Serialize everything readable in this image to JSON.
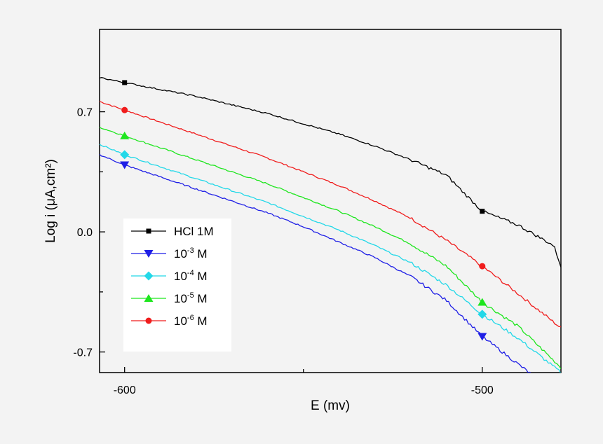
{
  "chart_data": {
    "type": "line",
    "xlabel": "E (mv)",
    "ylabel": "Log i (μA,cm²)",
    "xlim": [
      -607,
      -478
    ],
    "ylim": [
      -0.82,
      1.18
    ],
    "xticks": [
      -600,
      -500
    ],
    "yticks": [
      -0.7,
      0.0,
      0.7
    ],
    "xtick_labels": [
      "-600",
      "-500"
    ],
    "ytick_labels": [
      "-0.7",
      "0.0",
      "0.7"
    ],
    "grid": false,
    "legend_position": "bottom-left",
    "series": [
      {
        "name": "HCl 1M",
        "legend_base": "HCl 1M",
        "legend_sup": "",
        "legend_suffix": "",
        "color": "#000000",
        "marker": "square",
        "marker_x": [
          -600,
          -500
        ],
        "x": [
          -607,
          -600,
          -590,
          -580,
          -570,
          -560,
          -550,
          -540,
          -530,
          -520,
          -510,
          -500,
          -490,
          -480,
          -478
        ],
        "y": [
          0.9,
          0.87,
          0.83,
          0.79,
          0.74,
          0.69,
          0.63,
          0.57,
          0.5,
          0.42,
          0.33,
          0.12,
          0.04,
          -0.08,
          -0.2
        ]
      },
      {
        "name": "10-3 M",
        "legend_base": "10",
        "legend_sup": "-3",
        "legend_suffix": " M",
        "color": "#1f1fe6",
        "marker": "triangle-down",
        "marker_x": [
          -600,
          -500
        ],
        "x": [
          -607,
          -600,
          -590,
          -580,
          -570,
          -560,
          -550,
          -540,
          -530,
          -520,
          -510,
          -500,
          -490,
          -485
        ],
        "y": [
          0.45,
          0.39,
          0.32,
          0.25,
          0.18,
          0.11,
          0.03,
          -0.06,
          -0.15,
          -0.26,
          -0.4,
          -0.61,
          -0.77,
          -0.85
        ]
      },
      {
        "name": "10-4 M",
        "legend_base": "10",
        "legend_sup": "-4",
        "legend_suffix": " M",
        "color": "#22d8e8",
        "marker": "diamond",
        "marker_x": [
          -600,
          -500
        ],
        "x": [
          -607,
          -600,
          -590,
          -580,
          -570,
          -560,
          -550,
          -540,
          -530,
          -520,
          -510,
          -500,
          -490,
          -478
        ],
        "y": [
          0.51,
          0.45,
          0.38,
          0.31,
          0.24,
          0.17,
          0.09,
          0.01,
          -0.08,
          -0.18,
          -0.31,
          -0.48,
          -0.62,
          -0.82
        ]
      },
      {
        "name": "10-5 M",
        "legend_base": "10",
        "legend_sup": "-5",
        "legend_suffix": " M",
        "color": "#1ee61e",
        "marker": "triangle-up",
        "marker_x": [
          -600,
          -500
        ],
        "x": [
          -607,
          -600,
          -590,
          -580,
          -570,
          -560,
          -550,
          -540,
          -530,
          -520,
          -510,
          -500,
          -490,
          -478
        ],
        "y": [
          0.61,
          0.56,
          0.49,
          0.42,
          0.35,
          0.28,
          0.2,
          0.12,
          0.03,
          -0.07,
          -0.2,
          -0.41,
          -0.55,
          -0.79
        ]
      },
      {
        "name": "10-6 M",
        "legend_base": "10",
        "legend_sup": "-6",
        "legend_suffix": " M",
        "color": "#f01c1c",
        "marker": "circle",
        "marker_x": [
          -600,
          -500
        ],
        "x": [
          -607,
          -600,
          -590,
          -580,
          -570,
          -560,
          -550,
          -540,
          -530,
          -520,
          -510,
          -500,
          -490,
          -478
        ],
        "y": [
          0.76,
          0.71,
          0.64,
          0.57,
          0.5,
          0.43,
          0.35,
          0.27,
          0.18,
          0.08,
          -0.05,
          -0.2,
          -0.36,
          -0.56
        ]
      }
    ]
  }
}
